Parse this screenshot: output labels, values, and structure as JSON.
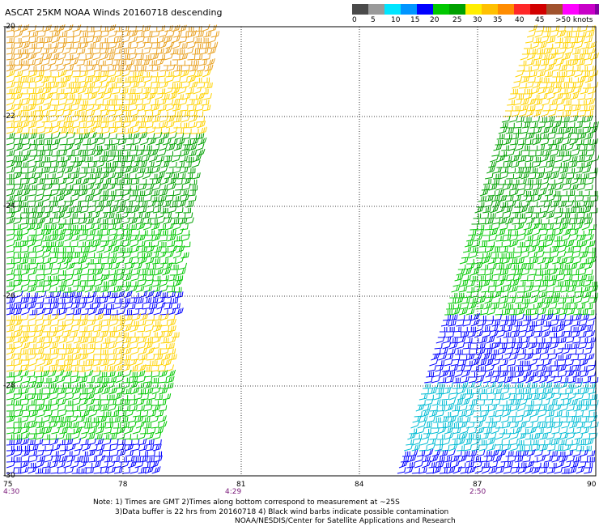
{
  "title": "ASCAT 25KM NOAA Winds 20160718 descending",
  "colorbar": {
    "colors": [
      "#4a4a4a",
      "#9a9a9a",
      "#00e5ff",
      "#0095ff",
      "#0000ff",
      "#00c800",
      "#00a000",
      "#ffee00",
      "#ffc000",
      "#ff8c00",
      "#ff2828",
      "#d20000",
      "#a0522d",
      "#ff00ff",
      "#c800c8",
      "#8000a0",
      "#3c006e"
    ],
    "labels": [
      "0",
      "5",
      "10",
      "15",
      "20",
      "25",
      "30",
      "35",
      "40",
      "45",
      ">50 knots"
    ]
  },
  "axes": {
    "lat_labels": [
      "-20",
      "-22",
      "-24",
      "-26",
      "-28",
      "-30"
    ],
    "lon_labels": [
      "75",
      "78",
      "81",
      "84",
      "87",
      "90"
    ],
    "lat_range": [
      -30,
      -20
    ],
    "lon_range": [
      75,
      90
    ]
  },
  "time_labels": [
    "4:30",
    "4:29",
    "2:50"
  ],
  "notes": {
    "line1": "Note: 1) Times are GMT 2)Times along bottom correspond to measurement at ~25S",
    "line2": "3)Data buffer is 22 hrs from 20160718 4) Black wind barbs indicate possible contamination",
    "line3": "NOAA/NESDIS/Center for Satellite Applications and Research"
  },
  "wind_regions": {
    "west_swath": [
      {
        "lat": [
          -21.0,
          -20.0
        ],
        "color": "#e8a020"
      },
      {
        "lat": [
          -22.5,
          -21.0
        ],
        "color": "#ffd200"
      },
      {
        "lat": [
          -24.5,
          -22.5
        ],
        "color": "#00a000"
      },
      {
        "lat": [
          -26.0,
          -24.5
        ],
        "color": "#00c800"
      },
      {
        "lat": [
          -26.5,
          -26.0
        ],
        "color": "#0000ff"
      },
      {
        "lat": [
          -27.8,
          -26.5
        ],
        "color": "#ffd200"
      },
      {
        "lat": [
          -29.2,
          -27.8
        ],
        "color": "#00c800"
      },
      {
        "lat": [
          -30.0,
          -29.2
        ],
        "color": "#0000ff"
      }
    ],
    "east_swath": [
      {
        "lat": [
          -22.0,
          -20.0
        ],
        "color": "#ffd200"
      },
      {
        "lat": [
          -24.5,
          -22.0
        ],
        "color": "#00a000"
      },
      {
        "lat": [
          -26.5,
          -24.5
        ],
        "color": "#00c800"
      },
      {
        "lat": [
          -28.0,
          -26.5
        ],
        "color": "#0000ff"
      },
      {
        "lat": [
          -29.5,
          -28.0
        ],
        "color": "#00bcd4"
      },
      {
        "lat": [
          -30.0,
          -29.5
        ],
        "color": "#0000ff"
      }
    ]
  }
}
